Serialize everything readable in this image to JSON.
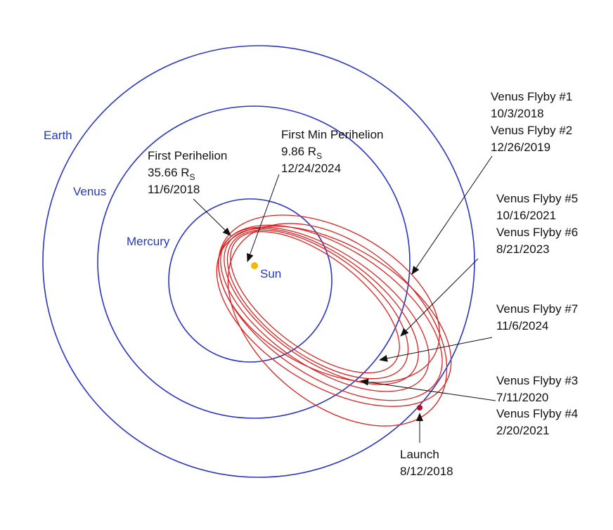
{
  "planets": {
    "earth": "Earth",
    "venus": "Venus",
    "mercury": "Mercury",
    "sun": "Sun"
  },
  "annotations": {
    "first_perihelion": {
      "title": "First Perihelion",
      "distance": "35.66 R",
      "subscript": "S",
      "date": "11/6/2018"
    },
    "first_min_perihelion": {
      "title": "First Min Perihelion",
      "distance": "9.86 R",
      "subscript": "S",
      "date": "12/24/2024"
    },
    "flyby_1": {
      "title": "Venus Flyby #1",
      "date": "10/3/2018"
    },
    "flyby_2": {
      "title": "Venus Flyby #2",
      "date": "12/26/2019"
    },
    "flyby_5": {
      "title": "Venus Flyby #5",
      "date": "10/16/2021"
    },
    "flyby_6": {
      "title": "Venus Flyby #6",
      "date": "8/21/2023"
    },
    "flyby_7": {
      "title": "Venus Flyby #7",
      "date": "11/6/2024"
    },
    "flyby_3": {
      "title": "Venus Flyby #3",
      "date": "7/11/2020"
    },
    "flyby_4": {
      "title": "Venus Flyby #4",
      "date": "2/20/2021"
    },
    "launch": {
      "title": "Launch",
      "date": "8/12/2018"
    }
  }
}
